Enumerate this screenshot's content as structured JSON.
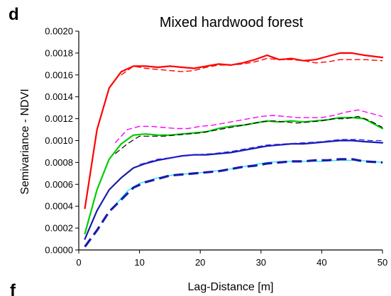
{
  "panel_letter": "d",
  "next_panel_letter": "f",
  "chart_data": {
    "type": "line",
    "title": "Mixed hardwood forest",
    "xlabel": "Lag-Distance [m]",
    "ylabel": "Semivariance - NDVI",
    "xlim": [
      0,
      50
    ],
    "ylim": [
      0,
      0.002
    ],
    "x_ticks": [
      "0",
      "10",
      "20",
      "30",
      "40",
      "50"
    ],
    "y_ticks": [
      "0.0000",
      "0.0002",
      "0.0004",
      "0.0006",
      "0.0008",
      "0.0010",
      "0.0012",
      "0.0014",
      "0.0016",
      "0.0018",
      "0.0020"
    ],
    "grid": false,
    "series": [
      {
        "color": "#ff0000",
        "style": "solid",
        "width": 2.2,
        "points": [
          [
            1,
            0.00038
          ],
          [
            3,
            0.0011
          ],
          [
            5,
            0.00148
          ],
          [
            7,
            0.00163
          ],
          [
            9,
            0.00168
          ],
          [
            11,
            0.00168
          ],
          [
            13,
            0.00167
          ],
          [
            15,
            0.00168
          ],
          [
            17,
            0.00167
          ],
          [
            19,
            0.00166
          ],
          [
            21,
            0.00168
          ],
          [
            23,
            0.0017
          ],
          [
            25,
            0.00169
          ],
          [
            27,
            0.00171
          ],
          [
            29,
            0.00174
          ],
          [
            31,
            0.00178
          ],
          [
            33,
            0.00174
          ],
          [
            35,
            0.00175
          ],
          [
            37,
            0.00173
          ],
          [
            39,
            0.00174
          ],
          [
            41,
            0.00177
          ],
          [
            43,
            0.0018
          ],
          [
            45,
            0.0018
          ],
          [
            47,
            0.00178
          ],
          [
            50,
            0.00176
          ]
        ]
      },
      {
        "color": "#ff0000",
        "style": "dashed",
        "width": 1.4,
        "points": [
          [
            7,
            0.0016
          ],
          [
            9,
            0.00168
          ],
          [
            11,
            0.00166
          ],
          [
            13,
            0.00165
          ],
          [
            15,
            0.00164
          ],
          [
            17,
            0.00163
          ],
          [
            19,
            0.00164
          ],
          [
            21,
            0.00167
          ],
          [
            23,
            0.00169
          ],
          [
            25,
            0.00169
          ],
          [
            27,
            0.0017
          ],
          [
            29,
            0.00172
          ],
          [
            31,
            0.00175
          ],
          [
            33,
            0.00174
          ],
          [
            35,
            0.00174
          ],
          [
            37,
            0.00173
          ],
          [
            39,
            0.00171
          ],
          [
            41,
            0.00172
          ],
          [
            43,
            0.00174
          ],
          [
            45,
            0.00174
          ],
          [
            47,
            0.00174
          ],
          [
            50,
            0.00173
          ]
        ]
      },
      {
        "color": "#ff00ff",
        "style": "dashed",
        "width": 1.4,
        "points": [
          [
            6,
            0.00098
          ],
          [
            8,
            0.0011
          ],
          [
            10,
            0.00113
          ],
          [
            12,
            0.00113
          ],
          [
            14,
            0.00112
          ],
          [
            16,
            0.00111
          ],
          [
            18,
            0.00111
          ],
          [
            20,
            0.00113
          ],
          [
            22,
            0.00114
          ],
          [
            24,
            0.00116
          ],
          [
            26,
            0.00118
          ],
          [
            28,
            0.0012
          ],
          [
            30,
            0.00122
          ],
          [
            32,
            0.00123
          ],
          [
            34,
            0.00122
          ],
          [
            36,
            0.00121
          ],
          [
            38,
            0.00121
          ],
          [
            40,
            0.00121
          ],
          [
            42,
            0.00123
          ],
          [
            44,
            0.00126
          ],
          [
            46,
            0.00128
          ],
          [
            48,
            0.00125
          ],
          [
            50,
            0.00122
          ]
        ]
      },
      {
        "color": "#00cc00",
        "style": "solid",
        "width": 2.2,
        "points": [
          [
            1,
            0.00015
          ],
          [
            3,
            0.00055
          ],
          [
            5,
            0.00083
          ],
          [
            7,
            0.00097
          ],
          [
            9,
            0.00105
          ],
          [
            11,
            0.00106
          ],
          [
            13,
            0.00105
          ],
          [
            15,
            0.00105
          ],
          [
            17,
            0.00106
          ],
          [
            19,
            0.00107
          ],
          [
            21,
            0.00108
          ],
          [
            23,
            0.00111
          ],
          [
            25,
            0.00113
          ],
          [
            27,
            0.00114
          ],
          [
            29,
            0.00116
          ],
          [
            31,
            0.00118
          ],
          [
            33,
            0.00117
          ],
          [
            35,
            0.00118
          ],
          [
            37,
            0.00117
          ],
          [
            39,
            0.00118
          ],
          [
            41,
            0.00119
          ],
          [
            43,
            0.00121
          ],
          [
            45,
            0.00121
          ],
          [
            47,
            0.0012
          ],
          [
            50,
            0.00111
          ]
        ]
      },
      {
        "color": "#000000",
        "style": "dashed",
        "width": 1.2,
        "points": [
          [
            6,
            0.00088
          ],
          [
            8,
            0.00097
          ],
          [
            10,
            0.00104
          ],
          [
            12,
            0.00104
          ],
          [
            14,
            0.00104
          ],
          [
            16,
            0.00105
          ],
          [
            18,
            0.00106
          ],
          [
            20,
            0.00107
          ],
          [
            22,
            0.00109
          ],
          [
            24,
            0.00111
          ],
          [
            26,
            0.00113
          ],
          [
            28,
            0.00115
          ],
          [
            30,
            0.00117
          ],
          [
            32,
            0.00118
          ],
          [
            34,
            0.00117
          ],
          [
            36,
            0.00116
          ],
          [
            38,
            0.00117
          ],
          [
            40,
            0.00118
          ],
          [
            42,
            0.0012
          ],
          [
            44,
            0.0012
          ],
          [
            46,
            0.00122
          ],
          [
            48,
            0.00118
          ],
          [
            50,
            0.00112
          ]
        ]
      },
      {
        "color": "#1a1aaa",
        "style": "solid",
        "width": 2.2,
        "points": [
          [
            1,
            0.0001
          ],
          [
            3,
            0.00036
          ],
          [
            5,
            0.00055
          ],
          [
            7,
            0.00066
          ],
          [
            9,
            0.00075
          ],
          [
            11,
            0.00079
          ],
          [
            13,
            0.00082
          ],
          [
            15,
            0.00084
          ],
          [
            17,
            0.00086
          ],
          [
            19,
            0.00087
          ],
          [
            21,
            0.00087
          ],
          [
            23,
            0.00088
          ],
          [
            25,
            0.00089
          ],
          [
            27,
            0.00091
          ],
          [
            29,
            0.00093
          ],
          [
            31,
            0.00095
          ],
          [
            33,
            0.00096
          ],
          [
            35,
            0.00097
          ],
          [
            37,
            0.00097
          ],
          [
            39,
            0.00098
          ],
          [
            41,
            0.00099
          ],
          [
            43,
            0.001
          ],
          [
            45,
            0.001
          ],
          [
            47,
            0.00099
          ],
          [
            50,
            0.00098
          ]
        ]
      },
      {
        "color": "#2222ff",
        "style": "dashed",
        "width": 1.2,
        "points": [
          [
            10,
            0.00078
          ],
          [
            13,
            0.00083
          ],
          [
            16,
            0.00085
          ],
          [
            19,
            0.00087
          ],
          [
            22,
            0.00088
          ],
          [
            25,
            0.0009
          ],
          [
            28,
            0.00093
          ],
          [
            31,
            0.00096
          ],
          [
            34,
            0.00097
          ],
          [
            37,
            0.00098
          ],
          [
            40,
            0.00099
          ],
          [
            43,
            0.00101
          ],
          [
            46,
            0.00101
          ],
          [
            48,
            0.001
          ],
          [
            50,
            0.001
          ]
        ]
      },
      {
        "color": "#00e5ff",
        "style": "solid",
        "width": 1.2,
        "points": [
          [
            6,
            0.00041
          ],
          [
            8,
            0.00054
          ],
          [
            10,
            0.00061
          ],
          [
            13,
            0.00066
          ],
          [
            16,
            0.00069
          ],
          [
            19,
            0.0007
          ],
          [
            22,
            0.00072
          ],
          [
            25,
            0.00074
          ],
          [
            28,
            0.00077
          ],
          [
            31,
            0.0008
          ],
          [
            34,
            0.00081
          ],
          [
            37,
            0.00081
          ],
          [
            40,
            0.00081
          ],
          [
            43,
            0.00082
          ],
          [
            46,
            0.00082
          ],
          [
            48,
            0.00081
          ],
          [
            50,
            0.0008
          ]
        ]
      },
      {
        "color": "#1a1aaa",
        "style": "dashed-heavy",
        "width": 3.2,
        "points": [
          [
            1,
            3e-05
          ],
          [
            3,
            0.00018
          ],
          [
            5,
            0.00035
          ],
          [
            7,
            0.00046
          ],
          [
            9,
            0.00057
          ],
          [
            11,
            0.00062
          ],
          [
            13,
            0.00065
          ],
          [
            15,
            0.00068
          ],
          [
            17,
            0.00069
          ],
          [
            19,
            0.0007
          ],
          [
            21,
            0.00071
          ],
          [
            23,
            0.00072
          ],
          [
            25,
            0.00074
          ],
          [
            27,
            0.00076
          ],
          [
            29,
            0.00077
          ],
          [
            31,
            0.00079
          ],
          [
            33,
            0.0008
          ],
          [
            35,
            0.00081
          ],
          [
            37,
            0.00081
          ],
          [
            39,
            0.00082
          ],
          [
            41,
            0.00082
          ],
          [
            43,
            0.00083
          ],
          [
            45,
            0.00083
          ],
          [
            47,
            0.00081
          ],
          [
            50,
            0.0008
          ]
        ]
      }
    ]
  }
}
